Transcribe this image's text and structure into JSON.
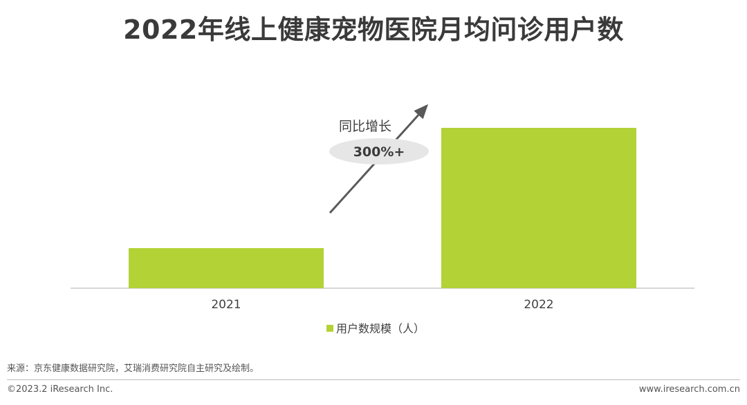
{
  "title": "2022年线上健康宠物医院月均问诊用户数",
  "chart_data": {
    "type": "bar",
    "categories": [
      "2021",
      "2022"
    ],
    "series": [
      {
        "name": "用户数规模（人）",
        "values": [
          1,
          4
        ]
      }
    ],
    "annotation": {
      "label": "同比增长",
      "value": "300%+"
    },
    "colors": {
      "bar": "#b2d235",
      "arrow": "#595959",
      "ellipse": "#e6e6e6",
      "axis": "#c8c8c8"
    },
    "legend_position": "bottom",
    "grid": false
  },
  "source": "来源：京东健康数据研究院，艾瑞消费研究院自主研究及绘制。",
  "copyright": "©2023.2 iResearch Inc.",
  "website": "www.iresearch.com.cn"
}
